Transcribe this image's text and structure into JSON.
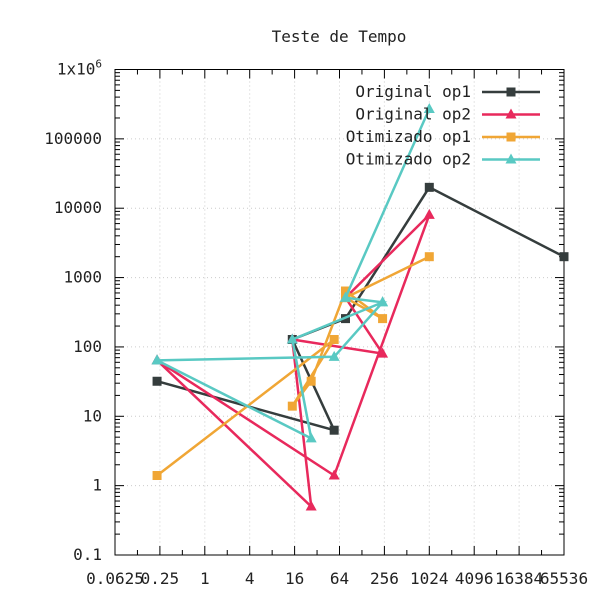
{
  "chart_data": {
    "type": "line",
    "title": "Teste de Tempo",
    "xlabel": "",
    "ylabel": "",
    "x_scale": "log2",
    "y_scale": "log10",
    "xlim": [
      0.0625,
      65536
    ],
    "ylim": [
      0.1,
      1000000
    ],
    "grid": true,
    "legend_position": "top-right",
    "x_ticks": [
      {
        "value": 0.0625,
        "label": "0.0625"
      },
      {
        "value": 0.25,
        "label": "0.25"
      },
      {
        "value": 1,
        "label": "1"
      },
      {
        "value": 4,
        "label": "4"
      },
      {
        "value": 16,
        "label": "16"
      },
      {
        "value": 64,
        "label": "64"
      },
      {
        "value": 256,
        "label": "256"
      },
      {
        "value": 1024,
        "label": "1024"
      },
      {
        "value": 4096,
        "label": "4096"
      },
      {
        "value": 16384,
        "label": "16384"
      },
      {
        "value": 65536,
        "label": "65536"
      }
    ],
    "y_ticks": [
      {
        "value": 0.1,
        "label": "0.1"
      },
      {
        "value": 1,
        "label": "1"
      },
      {
        "value": 10,
        "label": "10"
      },
      {
        "value": 100,
        "label": "100"
      },
      {
        "value": 1000,
        "label": "1000"
      },
      {
        "value": 10000,
        "label": "10000"
      },
      {
        "value": 100000,
        "label": "100000"
      },
      {
        "value": 1000000,
        "label": "1x10",
        "exponent": "6"
      }
    ],
    "series": [
      {
        "name": "Original op1",
        "color": "#353d3d",
        "marker": "square",
        "points": [
          [
            0.229,
            32
          ],
          [
            54.3,
            6.3
          ],
          [
            14.9,
            128
          ],
          [
            77,
            256
          ],
          [
            1024,
            20000
          ],
          [
            65536,
            2000
          ]
        ]
      },
      {
        "name": "Original op2",
        "color": "#e8295c",
        "marker": "triangle",
        "points": [
          [
            0.229,
            64
          ],
          [
            26.7,
            0.5
          ],
          [
            14.9,
            128
          ],
          [
            242,
            80
          ],
          [
            77,
            512
          ],
          [
            1024,
            8000
          ],
          [
            54.3,
            1.4
          ],
          [
            0.229,
            64
          ]
        ]
      },
      {
        "name": "Otimizado op1",
        "color": "#f0a635",
        "marker": "square",
        "points": [
          [
            0.229,
            1.4
          ],
          [
            54.3,
            128
          ],
          [
            14.9,
            14
          ],
          [
            26.7,
            32
          ],
          [
            77,
            640
          ],
          [
            242,
            256
          ],
          [
            77,
            512
          ],
          [
            1024,
            2000
          ]
        ]
      },
      {
        "name": "Otimizado op2",
        "color": "#59c9c3",
        "marker": "triangle",
        "points": [
          [
            0.229,
            64
          ],
          [
            26.7,
            4.8
          ],
          [
            14.9,
            128
          ],
          [
            242,
            440
          ],
          [
            77,
            512
          ],
          [
            1024,
            270000
          ],
          [
            77,
            512
          ],
          [
            242,
            440
          ],
          [
            54.3,
            72
          ],
          [
            0.229,
            64
          ]
        ]
      }
    ]
  }
}
